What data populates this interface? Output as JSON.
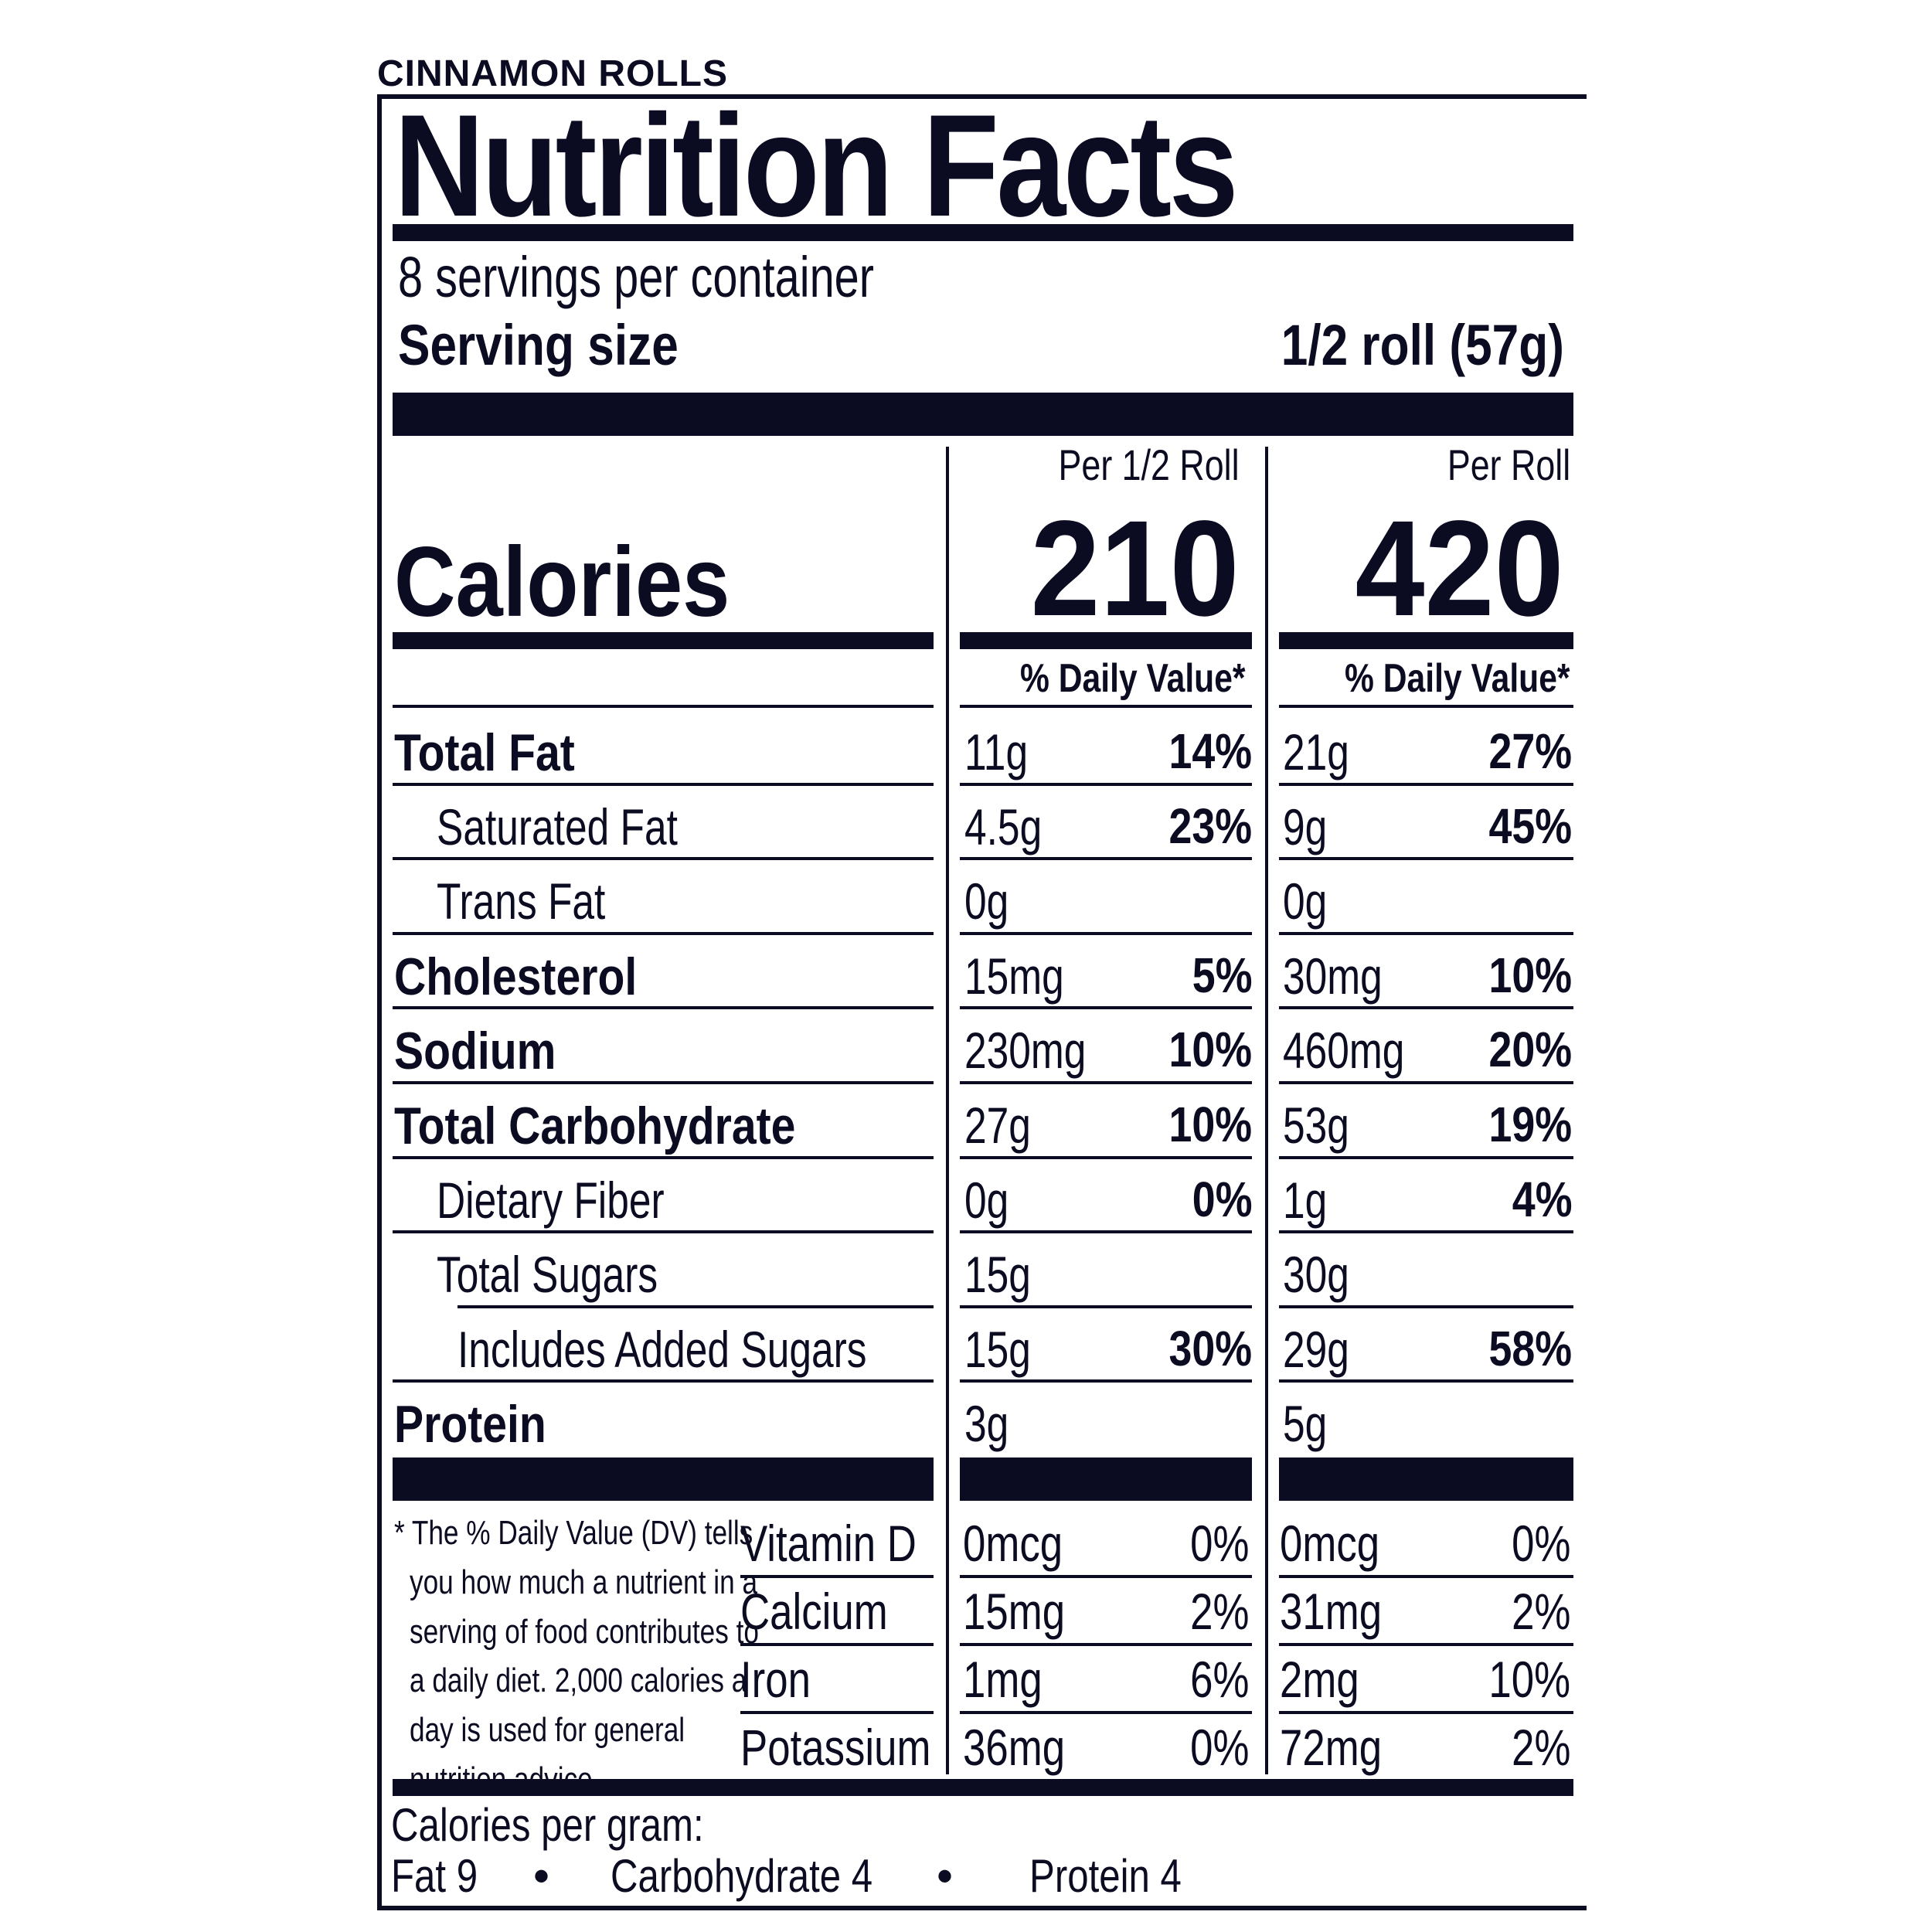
{
  "product_name": "CINNAMON ROLLS",
  "title": "Nutrition Facts",
  "servings_per_container": "8 servings per container",
  "serving_size_label": "Serving size",
  "serving_size_value": "1/2 roll (57g)",
  "columns": [
    {
      "header": "Per 1/2 Roll",
      "calories": "210",
      "dv_header": "% Daily Value*"
    },
    {
      "header": "Per Roll",
      "calories": "420",
      "dv_header": "% Daily Value*"
    }
  ],
  "calories_label": "Calories",
  "nutrients": [
    {
      "label": "Total Fat",
      "bold": true,
      "indent": 0,
      "c1_amount": "11g",
      "c1_dv": "14%",
      "c2_amount": "21g",
      "c2_dv": "27%"
    },
    {
      "label": "Saturated Fat",
      "bold": false,
      "indent": 1,
      "c1_amount": "4.5g",
      "c1_dv": "23%",
      "c2_amount": "9g",
      "c2_dv": "45%"
    },
    {
      "label": "Trans Fat",
      "bold": false,
      "indent": 1,
      "c1_amount": "0g",
      "c1_dv": "",
      "c2_amount": "0g",
      "c2_dv": ""
    },
    {
      "label": "Cholesterol",
      "bold": true,
      "indent": 0,
      "c1_amount": "15mg",
      "c1_dv": "5%",
      "c2_amount": "30mg",
      "c2_dv": "10%"
    },
    {
      "label": "Sodium",
      "bold": true,
      "indent": 0,
      "c1_amount": "230mg",
      "c1_dv": "10%",
      "c2_amount": "460mg",
      "c2_dv": "20%"
    },
    {
      "label": "Total Carbohydrate",
      "bold": true,
      "indent": 0,
      "c1_amount": "27g",
      "c1_dv": "10%",
      "c2_amount": "53g",
      "c2_dv": "19%"
    },
    {
      "label": "Dietary Fiber",
      "bold": false,
      "indent": 1,
      "c1_amount": "0g",
      "c1_dv": "0%",
      "c2_amount": "1g",
      "c2_dv": "4%"
    },
    {
      "label": "Total Sugars",
      "bold": false,
      "indent": 1,
      "c1_amount": "15g",
      "c1_dv": "",
      "c2_amount": "30g",
      "c2_dv": ""
    },
    {
      "label": "Includes Added Sugars",
      "bold": false,
      "indent": 2,
      "c1_amount": "15g",
      "c1_dv": "30%",
      "c2_amount": "29g",
      "c2_dv": "58%"
    },
    {
      "label": "Protein",
      "bold": true,
      "indent": 0,
      "c1_amount": "3g",
      "c1_dv": "",
      "c2_amount": "5g",
      "c2_dv": ""
    }
  ],
  "footnote_lines": [
    "* The % Daily Value (DV) tells",
    "you how much a nutrient in a",
    "serving of food contributes to",
    "a daily diet. 2,000 calories a",
    "day is used for general",
    "nutrition advice."
  ],
  "vitamins": [
    {
      "label": "Vitamin D",
      "c1_amount": "0mcg",
      "c1_dv": "0%",
      "c2_amount": "0mcg",
      "c2_dv": "0%"
    },
    {
      "label": "Calcium",
      "c1_amount": "15mg",
      "c1_dv": "2%",
      "c2_amount": "31mg",
      "c2_dv": "2%"
    },
    {
      "label": "Iron",
      "c1_amount": "1mg",
      "c1_dv": "6%",
      "c2_amount": "2mg",
      "c2_dv": "10%"
    },
    {
      "label": "Potassium",
      "c1_amount": "36mg",
      "c1_dv": "0%",
      "c2_amount": "72mg",
      "c2_dv": "2%"
    }
  ],
  "calories_per_gram": {
    "label": "Calories per gram:",
    "fat": "Fat 9",
    "carbohydrate": "Carbohydrate 4",
    "protein": "Protein 4",
    "separator": "•"
  }
}
